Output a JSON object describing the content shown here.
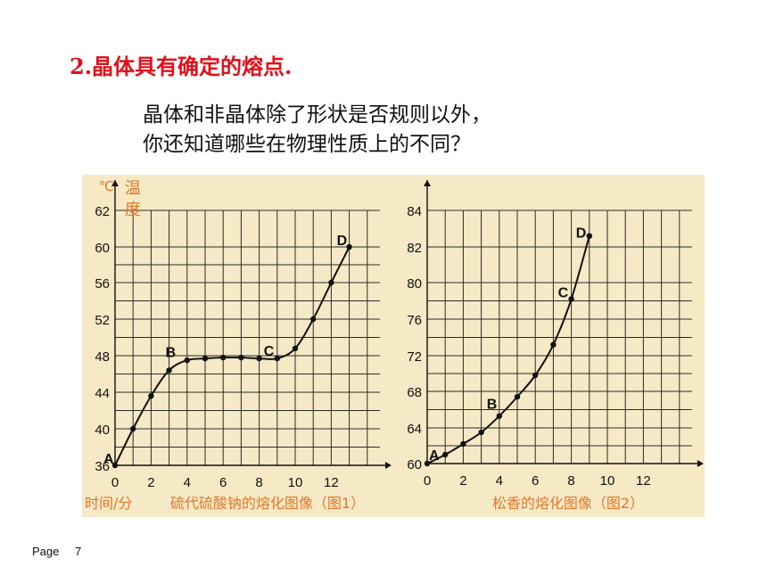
{
  "heading": "2.晶体具有确定的熔点.",
  "question": {
    "line1": "晶体和非晶体除了形状是否规则以外，",
    "line2": "你还知道哪些在物理性质上的不同？"
  },
  "footer": {
    "page_label": "Page",
    "page_number": "7"
  },
  "colors": {
    "heading": "#e0101a",
    "panel_bg": "#f6e9c6",
    "axis_label": "#e0782a",
    "curve": "#111111"
  },
  "chart_data": [
    {
      "type": "line",
      "title": "硫代硫酸钠的熔化图像（图1）",
      "xlabel": "时间/分",
      "ylabel_unit": "℃",
      "ylabel": "温度",
      "xlim": [
        0,
        14
      ],
      "ylim": [
        36,
        62
      ],
      "x_tick_labels": [
        "0",
        "2",
        "4",
        "6",
        "8",
        "10",
        "12"
      ],
      "y_tick_labels": [
        "36",
        "40",
        "44",
        "48",
        "52",
        "56",
        "60",
        "62"
      ],
      "grid": true,
      "series": [
        {
          "x": [
            0,
            1,
            2,
            3,
            4,
            5,
            6,
            7,
            8,
            9,
            10,
            11,
            12,
            13
          ],
          "y": [
            36,
            40,
            43.6,
            46.4,
            47.5,
            47.7,
            47.8,
            47.8,
            47.7,
            47.7,
            48.8,
            52,
            56,
            60
          ]
        }
      ],
      "annotations": [
        {
          "text": "A",
          "x": 0,
          "y": 36
        },
        {
          "text": "B",
          "x": 3,
          "y": 46.4
        },
        {
          "text": "C",
          "x": 9,
          "y": 47.7
        },
        {
          "text": "D",
          "x": 13,
          "y": 60
        }
      ]
    },
    {
      "type": "line",
      "title": "松香的熔化图像（图2）",
      "xlim": [
        0,
        14
      ],
      "ylim": [
        60,
        84
      ],
      "x_tick_labels": [
        "0",
        "2",
        "4",
        "6",
        "8",
        "10",
        "12"
      ],
      "y_tick_labels": [
        "60",
        "64",
        "68",
        "72",
        "76",
        "80",
        "82",
        "84"
      ],
      "grid": true,
      "series": [
        {
          "x": [
            0,
            1,
            2,
            3,
            4,
            5,
            6,
            7,
            8,
            9
          ],
          "y": [
            60,
            61,
            62.2,
            63.5,
            65.3,
            67.4,
            69.8,
            73.2,
            78.2,
            82.6
          ]
        }
      ],
      "annotations": [
        {
          "text": "A",
          "x": 0,
          "y": 60
        },
        {
          "text": "B",
          "x": 4,
          "y": 65.3
        },
        {
          "text": "C",
          "x": 8,
          "y": 78.2
        },
        {
          "text": "D",
          "x": 9,
          "y": 82.6
        }
      ]
    }
  ]
}
